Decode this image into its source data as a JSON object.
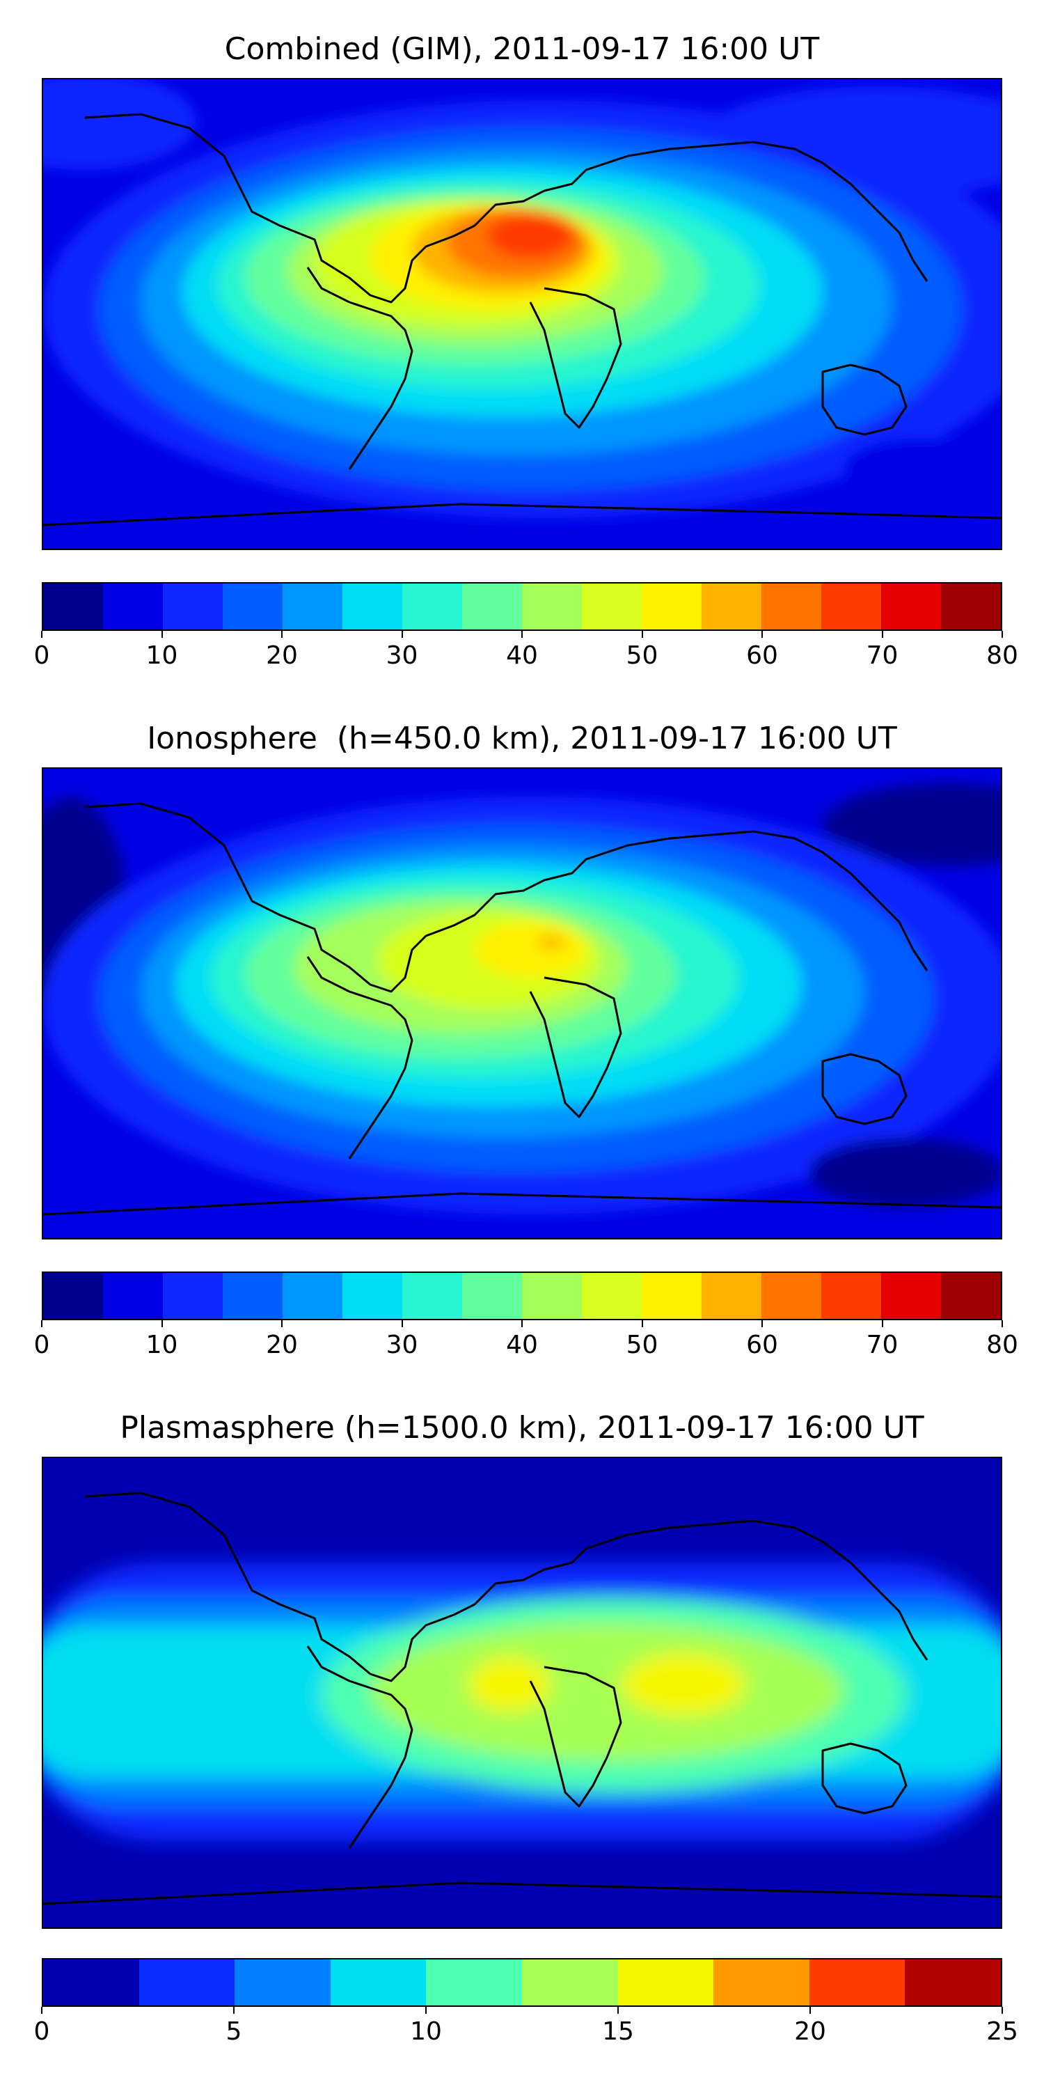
{
  "panels": [
    {
      "title": "Combined (GIM), 2011-09-17 16:00 UT",
      "colorbar": {
        "ticks": [
          "0",
          "10",
          "20",
          "30",
          "40",
          "50",
          "60",
          "70",
          "80"
        ],
        "colors": [
          "#00008f",
          "#0000e6",
          "#0f28ff",
          "#005dff",
          "#0096ff",
          "#00ddf5",
          "#26f5cf",
          "#62ff9d",
          "#a4ff5b",
          "#d7ff1f",
          "#fff000",
          "#ffb200",
          "#ff7400",
          "#ff3a00",
          "#e50000",
          "#9c0000"
        ]
      }
    },
    {
      "title": "Ionosphere  (h=450.0 km), 2011-09-17 16:00 UT",
      "colorbar": {
        "ticks": [
          "0",
          "10",
          "20",
          "30",
          "40",
          "50",
          "60",
          "70",
          "80"
        ],
        "colors": [
          "#00008f",
          "#0000e6",
          "#0f28ff",
          "#005dff",
          "#0096ff",
          "#00ddf5",
          "#26f5cf",
          "#62ff9d",
          "#a4ff5b",
          "#d7ff1f",
          "#fff000",
          "#ffb200",
          "#ff7400",
          "#ff3a00",
          "#e50000",
          "#9c0000"
        ]
      }
    },
    {
      "title": "Plasmasphere (h=1500.0 km), 2011-09-17 16:00 UT",
      "colorbar": {
        "ticks": [
          "0",
          "5",
          "10",
          "15",
          "20",
          "25"
        ],
        "colors": [
          "#0000b0",
          "#0a2cff",
          "#0080ff",
          "#00def0",
          "#4dffb0",
          "#a6ff52",
          "#f5f500",
          "#ff9a00",
          "#ff3a00",
          "#b30000"
        ]
      }
    }
  ]
}
